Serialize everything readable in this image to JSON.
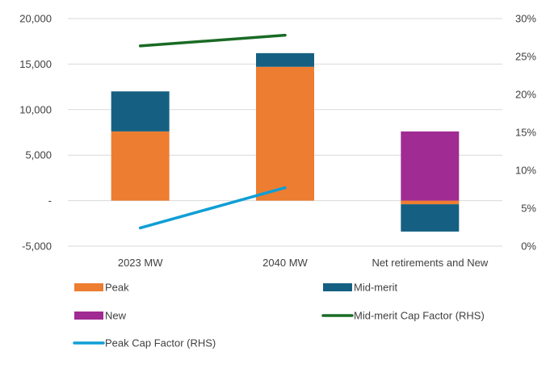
{
  "chart_data": {
    "type": "bar",
    "stacked": true,
    "categories": [
      "2023 MW",
      "2040 MW",
      "Net retirements and New"
    ],
    "series": [
      {
        "name": "Peak",
        "kind": "bar",
        "axis": "left",
        "color": "#ED7D31",
        "values": [
          7600,
          14700,
          -400
        ]
      },
      {
        "name": "Mid-merit",
        "kind": "bar",
        "axis": "left",
        "color": "#156082",
        "values": [
          4400,
          1500,
          -3000
        ]
      },
      {
        "name": "New",
        "kind": "bar",
        "axis": "left",
        "color": "#A02B93",
        "values": [
          0,
          0,
          7600
        ]
      },
      {
        "name": "Mid-merit Cap Factor (RHS)",
        "kind": "line",
        "axis": "right",
        "color": "#196B24",
        "values": [
          0.264,
          0.278,
          null
        ]
      },
      {
        "name": "Peak Cap Factor (RHS)",
        "kind": "line",
        "axis": "right",
        "color": "#0F9ED5",
        "values": [
          0.024,
          0.077,
          null
        ]
      }
    ],
    "y_left": {
      "min": -5000,
      "max": 20000,
      "step": 5000,
      "tick_labels": [
        "-5,000",
        "-",
        "5,000",
        "10,000",
        "15,000",
        "20,000"
      ]
    },
    "y_right": {
      "min": 0,
      "max": 0.3,
      "step": 0.05,
      "tick_labels": [
        "0%",
        "5%",
        "10%",
        "15%",
        "20%",
        "25%",
        "30%"
      ]
    },
    "grid": true,
    "legend_position": "bottom",
    "legend_order": [
      "Peak",
      "Mid-merit",
      "New",
      "Mid-merit Cap Factor (RHS)",
      "Peak Cap Factor (RHS)"
    ]
  }
}
